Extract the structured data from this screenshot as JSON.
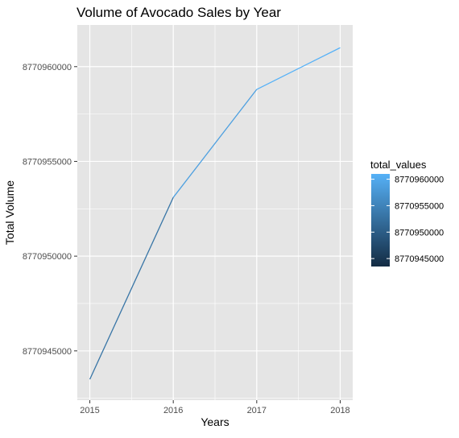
{
  "chart_data": {
    "type": "line",
    "title": "Volume of Avocado Sales by Year",
    "xlabel": "Years",
    "ylabel": "Total Volume",
    "x": [
      2015,
      2016,
      2017,
      2018
    ],
    "x_tick_labels": [
      "2015",
      "2016",
      "2017",
      "2018"
    ],
    "xlim": [
      2014.85,
      2018.15
    ],
    "series": [
      {
        "values": [
          8770943500,
          8770953100,
          8770958800,
          8770961000
        ]
      }
    ],
    "y_ticks": [
      8770945000,
      8770950000,
      8770955000,
      8770960000
    ],
    "y_tick_labels": [
      "8770945000",
      "8770950000",
      "8770955000",
      "8770960000"
    ],
    "ylim": [
      8770942400,
      8770962200
    ],
    "grid": true,
    "legend": {
      "title": "total_values",
      "placement": "right",
      "type": "colorbar",
      "labels": [
        "8770960000",
        "8770955000",
        "8770950000",
        "8770945000"
      ],
      "label_values": [
        8770960000,
        8770955000,
        8770950000,
        8770945000
      ],
      "range": [
        8770943500,
        8770961000
      ],
      "color_low": "#132B43",
      "color_high": "#56B1F7"
    },
    "colors": {
      "panel_background": "#E5E5E5",
      "grid": "#FFFFFF",
      "axis_text": "#4D4D4D",
      "text": "#000000"
    }
  }
}
